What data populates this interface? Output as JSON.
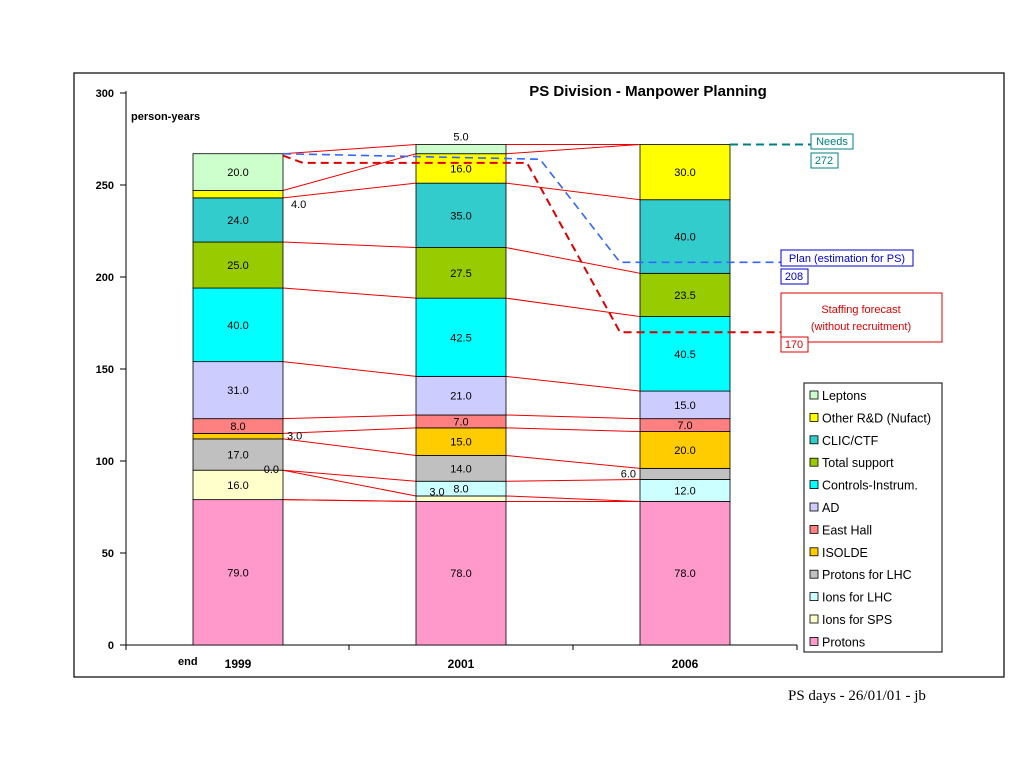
{
  "footer": "PS days - 26/01/01 - jb",
  "chart_data": {
    "type": "bar",
    "stacked": true,
    "title": "PS Division - Manpower Planning",
    "ylabel": "person-years",
    "ylim": [
      0,
      300
    ],
    "yticks": [
      "0",
      "50",
      "100",
      "150",
      "200",
      "250",
      "300"
    ],
    "x_prefix": "end",
    "categories": [
      "1999",
      "2001",
      "2006"
    ],
    "series": [
      {
        "name": "Protons",
        "color": "#ff99cc",
        "values": [
          79.0,
          78.0,
          78.0
        ],
        "labels": [
          "79.0",
          "78.0",
          "78.0"
        ]
      },
      {
        "name": "Ions for SPS",
        "color": "#ffffcc",
        "values": [
          16.0,
          3.0,
          0.0
        ],
        "labels": [
          "16.0",
          "3.0",
          ""
        ]
      },
      {
        "name": "Ions for LHC",
        "color": "#ccffff",
        "values": [
          0.0,
          8.0,
          12.0
        ],
        "labels": [
          "0.0",
          "8.0",
          "12.0"
        ]
      },
      {
        "name": "Protons for LHC",
        "color": "#c0c0c0",
        "values": [
          17.0,
          14.0,
          6.0
        ],
        "labels": [
          "17.0",
          "14.0",
          "6.0"
        ]
      },
      {
        "name": "ISOLDE",
        "color": "#ffcc00",
        "values": [
          3.0,
          15.0,
          20.0
        ],
        "labels": [
          "3.0",
          "15.0",
          "20.0"
        ]
      },
      {
        "name": "East Hall",
        "color": "#ff8080",
        "values": [
          8.0,
          7.0,
          7.0
        ],
        "labels": [
          "8.0",
          "7.0",
          "7.0"
        ]
      },
      {
        "name": "AD",
        "color": "#ccccff",
        "values": [
          31.0,
          21.0,
          15.0
        ],
        "labels": [
          "31.0",
          "21.0",
          "15.0"
        ]
      },
      {
        "name": "Controls-Instrum.",
        "color": "#00ffff",
        "values": [
          40.0,
          42.5,
          40.5
        ],
        "labels": [
          "40.0",
          "42.5",
          "40.5"
        ]
      },
      {
        "name": "Total support",
        "color": "#99cc00",
        "values": [
          25.0,
          27.5,
          23.5
        ],
        "labels": [
          "25.0",
          "27.5",
          "23.5"
        ]
      },
      {
        "name": "CLIC/CTF",
        "color": "#33cccc",
        "values": [
          24.0,
          35.0,
          40.0
        ],
        "labels": [
          "24.0",
          "35.0",
          "40.0"
        ]
      },
      {
        "name": "Other R&D (Nufact)",
        "color": "#ffff00",
        "values": [
          4.0,
          16.0,
          30.0
        ],
        "labels": [
          "4.0",
          "16.0",
          "30.0"
        ]
      },
      {
        "name": "Leptons",
        "color": "#ccffcc",
        "values": [
          20.0,
          5.0,
          0.0
        ],
        "labels": [
          "20.0",
          "5.0",
          ""
        ]
      }
    ],
    "annotations": [
      {
        "label": "Needs",
        "value": "272",
        "y": 272,
        "color": "#008080"
      },
      {
        "label": "Plan (estimation for PS)",
        "value": "208",
        "y": 208,
        "color": "#0000cc"
      },
      {
        "label": "Staffing forecast",
        "label2": "(without recruitment)",
        "value": "170",
        "y": 170,
        "color": "#dd0000"
      }
    ],
    "legend_position": "right",
    "grid": false
  }
}
